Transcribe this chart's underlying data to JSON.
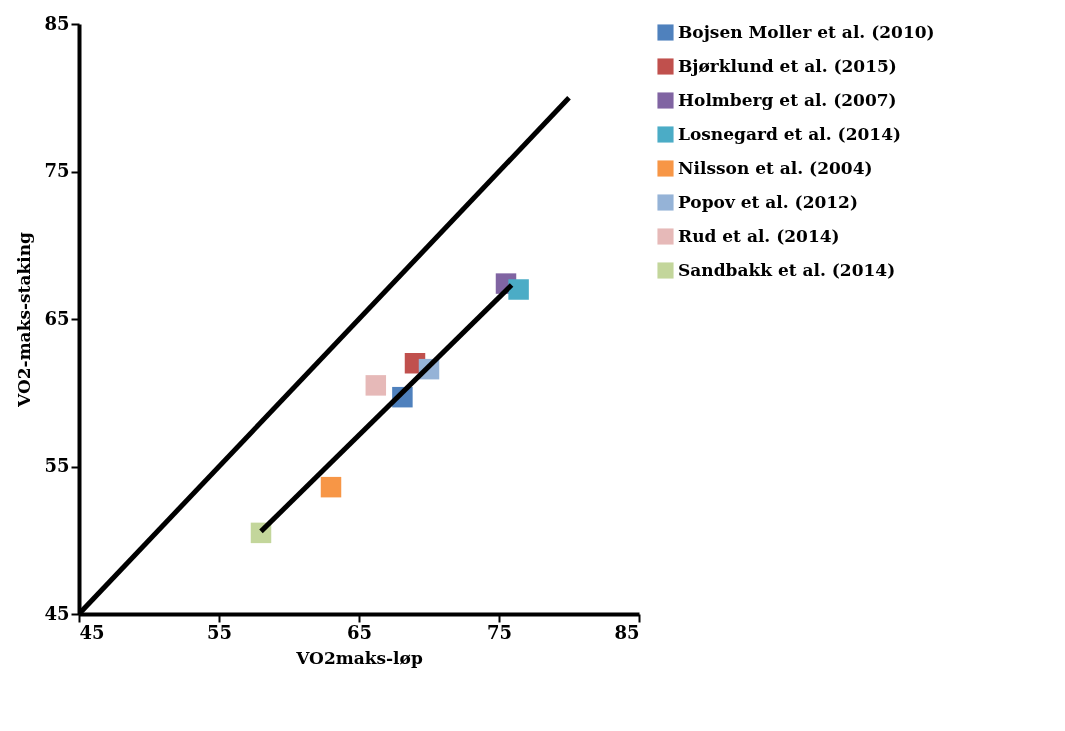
{
  "chart_data": {
    "type": "scatter",
    "xlabel": "VO2maks-løp",
    "ylabel": "VO2-maks-staking",
    "xlim": [
      45,
      85
    ],
    "ylim": [
      45,
      85
    ],
    "xticks": [
      45,
      55,
      65,
      75,
      85
    ],
    "yticks": [
      45,
      55,
      65,
      75,
      85
    ],
    "grid": false,
    "legend": "right",
    "marker": "square",
    "series": [
      {
        "name": "Bojsen Moller et al. (2010)",
        "color": "#4f81bd",
        "x": [
          68.1
        ],
        "values": [
          59.7
        ]
      },
      {
        "name": "Bjørklund et al. (2015)",
        "color": "#c0504d",
        "x": [
          69.0
        ],
        "values": [
          62.0
        ]
      },
      {
        "name": "Holmberg et al. (2007)",
        "color": "#8064a2",
        "x": [
          75.5
        ],
        "values": [
          67.4
        ]
      },
      {
        "name": "Losnegard et al. (2014)",
        "color": "#4bacc6",
        "x": [
          76.4
        ],
        "values": [
          67.0
        ]
      },
      {
        "name": "Nilsson et al. (2004)",
        "color": "#f79646",
        "x": [
          63.0
        ],
        "values": [
          53.6
        ]
      },
      {
        "name": "Popov et al. (2012)",
        "color": "#95b3d7",
        "x": [
          70.0
        ],
        "values": [
          61.6
        ]
      },
      {
        "name": "Rud et al. (2014)",
        "color": "#e6b9b8",
        "x": [
          66.2
        ],
        "values": [
          60.5
        ]
      },
      {
        "name": "Sandbakk et al. (2014)",
        "color": "#c3d69b",
        "x": [
          58.0
        ],
        "values": [
          50.5
        ]
      },
      {
        "type": "line",
        "marker": "none",
        "color": "#000000",
        "x": [
          45,
          80
        ],
        "values": [
          45,
          80
        ]
      },
      {
        "type": "line",
        "marker": "none",
        "color": "#000000",
        "x": [
          58.0,
          75.9
        ],
        "values": [
          50.6,
          67.3
        ]
      }
    ]
  }
}
